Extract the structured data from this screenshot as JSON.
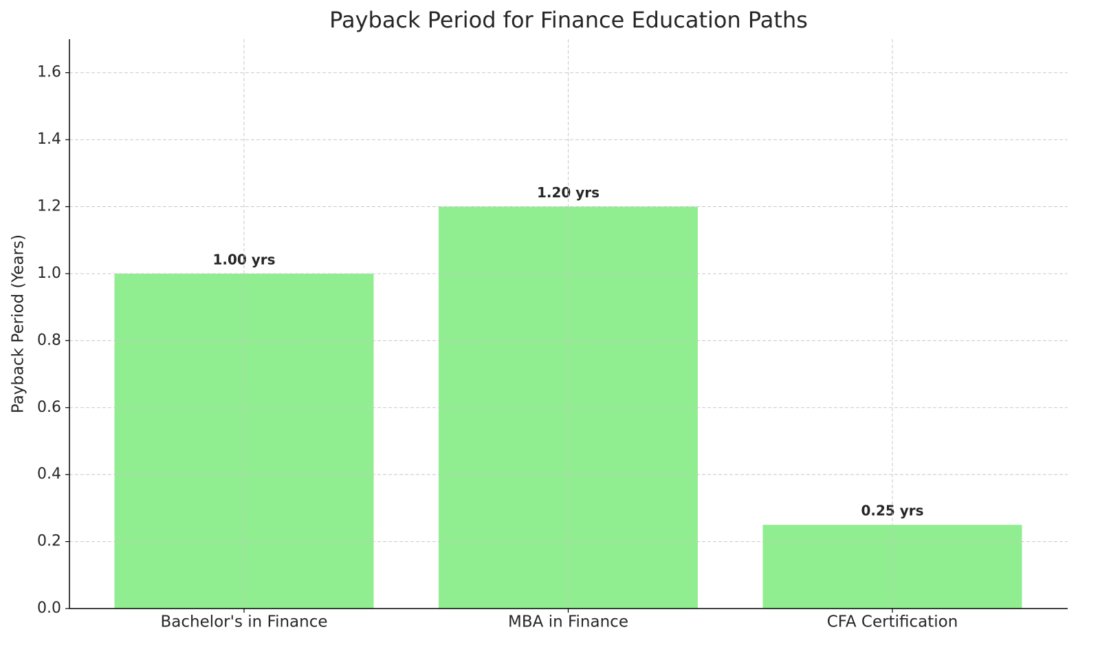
{
  "chart_data": {
    "type": "bar",
    "title": "Payback Period for Finance Education Paths",
    "y_label": "Payback Period (Years)",
    "categories": [
      "Bachelor's in Finance",
      "MBA in Finance",
      "CFA Certification"
    ],
    "values": [
      1.0,
      1.2,
      0.25
    ],
    "value_labels": [
      "1.00 yrs",
      "1.20 yrs",
      "0.25 yrs"
    ],
    "color": "#90ee90",
    "ylim": [
      0,
      1.7
    ],
    "yticks": [
      {
        "value": 0,
        "label": "0.0"
      },
      0.2,
      0.4,
      0.6,
      0.8,
      {
        "value": 1,
        "label": "1.0"
      },
      1.2,
      1.4,
      1.6
    ],
    "grid": true
  }
}
